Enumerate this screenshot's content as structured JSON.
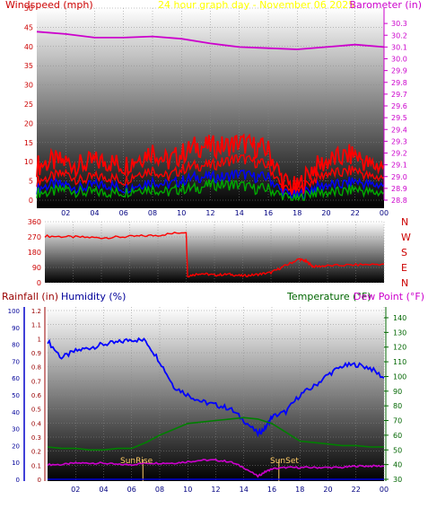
{
  "colors": {
    "wind": "#ff0000",
    "gust": "#ff0000",
    "wind_avg": "#0000ff",
    "wind_low": "#00aa00",
    "barometer": "#cc00cc",
    "direction": "#ff0000",
    "humidity": "#0000ff",
    "temperature": "#008000",
    "dewpoint": "#cc00cc",
    "rainfall": "#0000ff",
    "title": "#ffff00",
    "sun": "#ffcc66"
  },
  "chart_data": [
    {
      "type": "line",
      "panel": "wind-barometer",
      "title": "24 hour graph day - November 06 2025",
      "left_label": "Windspeed (mph)",
      "right_label": "Barometer (in)",
      "x_ticks": [
        "02",
        "04",
        "06",
        "08",
        "10",
        "12",
        "14",
        "16",
        "18",
        "20",
        "22",
        "00"
      ],
      "x_range": [
        0,
        24
      ],
      "y_left_range": [
        0,
        50
      ],
      "y_left_ticks": [
        "0",
        "5",
        "10",
        "15",
        "20",
        "25",
        "30",
        "35",
        "40",
        "45",
        "50"
      ],
      "y_right_range": [
        28.8,
        30.4
      ],
      "y_right_ticks": [
        "28.8",
        "28.9",
        "29.0",
        "29.1",
        "29.2",
        "29.3",
        "29.4",
        "29.5",
        "29.6",
        "29.7",
        "29.8",
        "29.9",
        "30.0",
        "30.1",
        "30.2",
        "30.3"
      ],
      "grid": true,
      "series": [
        {
          "name": "Windspeed",
          "x": [
            0,
            1,
            2,
            3,
            4,
            5,
            6,
            7,
            8,
            9,
            10,
            11,
            12,
            13,
            14,
            15,
            16,
            17,
            18,
            19,
            20,
            21,
            22,
            23,
            24
          ],
          "y": [
            5,
            6,
            7,
            5,
            6,
            6,
            5,
            7,
            8,
            6,
            8,
            9,
            9,
            10,
            11,
            10,
            9,
            3,
            2,
            5,
            7,
            7,
            8,
            6,
            6
          ]
        },
        {
          "name": "Gust",
          "x": [
            0,
            1,
            2,
            3,
            4,
            5,
            6,
            7,
            8,
            9,
            10,
            11,
            12,
            13,
            14,
            15,
            16,
            17,
            18,
            19,
            20,
            21,
            22,
            23,
            24
          ],
          "y": [
            9,
            10,
            10,
            9,
            10,
            10,
            9,
            11,
            13,
            10,
            12,
            14,
            14,
            14,
            15,
            14,
            13,
            5,
            3,
            8,
            10,
            11,
            12,
            9,
            9
          ]
        },
        {
          "name": "Average",
          "x": [
            0,
            1,
            2,
            3,
            4,
            5,
            6,
            7,
            8,
            9,
            10,
            11,
            12,
            13,
            14,
            15,
            16,
            17,
            18,
            19,
            20,
            21,
            22,
            23,
            24
          ],
          "y": [
            3,
            4,
            4,
            3,
            4,
            4,
            3,
            4,
            5,
            4,
            5,
            6,
            6,
            6,
            7,
            6,
            6,
            2,
            1,
            3,
            4,
            4,
            5,
            4,
            4
          ]
        },
        {
          "name": "Low",
          "x": [
            0,
            1,
            2,
            3,
            4,
            5,
            6,
            7,
            8,
            9,
            10,
            11,
            12,
            13,
            14,
            15,
            16,
            17,
            18,
            19,
            20,
            21,
            22,
            23,
            24
          ],
          "y": [
            2,
            2,
            3,
            2,
            2,
            2,
            2,
            3,
            3,
            2,
            3,
            3,
            4,
            4,
            4,
            3,
            3,
            1,
            0,
            2,
            2,
            2,
            3,
            2,
            2
          ]
        },
        {
          "name": "Barometer",
          "axis": "right",
          "x": [
            0,
            2,
            4,
            6,
            8,
            10,
            12,
            14,
            16,
            18,
            20,
            22,
            24
          ],
          "y": [
            30.23,
            30.21,
            30.18,
            30.18,
            30.19,
            30.17,
            30.13,
            30.1,
            30.09,
            30.08,
            30.1,
            30.12,
            30.1
          ]
        }
      ]
    },
    {
      "type": "line",
      "panel": "wind-direction",
      "x_range": [
        0,
        24
      ],
      "y_range": [
        0,
        360
      ],
      "y_ticks": [
        "0",
        "90",
        "180",
        "270",
        "360"
      ],
      "y_labels_right": [
        "N",
        "W",
        "S",
        "E",
        "N"
      ],
      "grid": true,
      "series": [
        {
          "name": "Direction",
          "x": [
            0,
            2,
            4,
            6,
            8,
            10,
            10.1,
            11,
            12,
            13,
            14,
            15,
            16,
            17,
            18,
            18.5,
            19,
            20,
            22,
            24
          ],
          "y": [
            275,
            270,
            265,
            272,
            280,
            300,
            40,
            55,
            45,
            50,
            40,
            48,
            60,
            100,
            140,
            125,
            95,
            100,
            105,
            110
          ]
        }
      ]
    },
    {
      "type": "line",
      "panel": "rain-humidity-temperature",
      "left_outer_label": "Rainfall (in)",
      "left_inner_label": "Humidity (%)",
      "right_label_temp": "Temperature (°F)",
      "right_label_dew": "Dew Point (°F)",
      "rain_range": [
        0,
        1.2
      ],
      "rain_ticks": [
        "0",
        "0.1",
        "0.2",
        "0.3",
        "0.4",
        "0.5",
        "0.6",
        "0.7",
        "0.8",
        "0.9",
        "1",
        "1.1",
        "1.2"
      ],
      "humidity_range": [
        0,
        100
      ],
      "humidity_ticks": [
        "0",
        "10",
        "20",
        "30",
        "40",
        "50",
        "60",
        "70",
        "80",
        "90",
        "100"
      ],
      "temp_range": [
        30,
        140
      ],
      "temp_ticks": [
        "30",
        "40",
        "50",
        "60",
        "70",
        "80",
        "90",
        "100",
        "110",
        "120",
        "130",
        "140"
      ],
      "x_ticks": [
        "02",
        "04",
        "06",
        "08",
        "10",
        "12",
        "14",
        "16",
        "18",
        "20",
        "22",
        "00"
      ],
      "x_range": [
        0,
        24
      ],
      "grid": true,
      "annotations": [
        "SunRise",
        "SunSet"
      ],
      "series": [
        {
          "name": "Humidity",
          "x": [
            0,
            1,
            2,
            3,
            4,
            5,
            6,
            7,
            8,
            9,
            10,
            11,
            12,
            13,
            14,
            15,
            15.5,
            16,
            17,
            18,
            19,
            20,
            21,
            22,
            23,
            24
          ],
          "y": [
            82,
            72,
            76,
            78,
            80,
            81,
            83,
            82,
            70,
            55,
            50,
            46,
            44,
            42,
            35,
            27,
            30,
            37,
            40,
            50,
            55,
            62,
            67,
            68,
            66,
            60
          ]
        },
        {
          "name": "Temperature",
          "x": [
            0,
            1,
            2,
            3,
            4,
            5,
            6,
            7,
            8,
            9,
            10,
            11,
            12,
            13,
            14,
            15,
            16,
            17,
            18,
            19,
            20,
            21,
            22,
            23,
            24
          ],
          "y": [
            52,
            51,
            51,
            50,
            50,
            51,
            51,
            55,
            60,
            64,
            68,
            69,
            70,
            71,
            72,
            71,
            68,
            62,
            56,
            55,
            54,
            53,
            53,
            52,
            52
          ]
        },
        {
          "name": "Dew Point",
          "x": [
            0,
            1,
            2,
            3,
            4,
            5,
            6,
            7,
            8,
            9,
            10,
            11,
            12,
            13,
            14,
            15,
            15.5,
            16,
            17,
            18,
            19,
            20,
            21,
            22,
            23,
            24
          ],
          "y": [
            40,
            40,
            41,
            41,
            41,
            40,
            40,
            41,
            41,
            41,
            42,
            43,
            43,
            42,
            38,
            32,
            35,
            37,
            38,
            38,
            38,
            38,
            38,
            39,
            39,
            39
          ]
        },
        {
          "name": "Rainfall",
          "x": [
            0,
            24
          ],
          "y": [
            0,
            0
          ]
        }
      ]
    }
  ]
}
